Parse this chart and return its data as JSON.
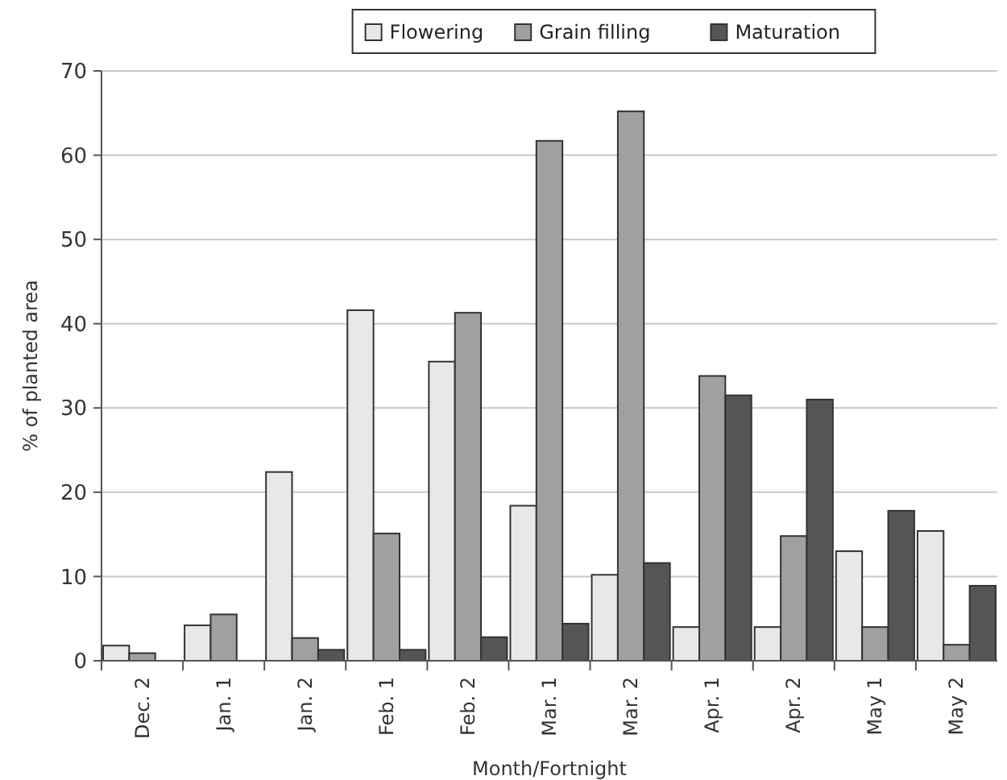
{
  "chart_data": {
    "type": "bar",
    "xlabel": "Month/Fortnight",
    "ylabel": "% of planted area",
    "categories": [
      "Dec. 2",
      "Jan. 1",
      "Jan. 2",
      "Feb. 1",
      "Feb. 2",
      "Mar. 1",
      "Mar. 2",
      "Apr. 1",
      "Apr. 2",
      "May 1",
      "May 2"
    ],
    "series": [
      {
        "name": "Flowering",
        "color": "#e8e8e8",
        "values": [
          1.8,
          4.2,
          22.4,
          41.6,
          35.5,
          18.4,
          10.2,
          4.0,
          4.0,
          13.0,
          15.4
        ]
      },
      {
        "name": "Grain filling",
        "color": "#a0a0a0",
        "values": [
          0.9,
          5.5,
          2.7,
          15.1,
          41.3,
          61.7,
          65.2,
          33.8,
          14.8,
          4.0,
          1.9
        ]
      },
      {
        "name": "Maturation",
        "color": "#555555",
        "values": [
          0,
          0,
          1.3,
          1.3,
          2.8,
          4.4,
          11.6,
          31.5,
          31.0,
          17.8,
          8.9
        ]
      }
    ],
    "ylim": [
      0,
      70
    ],
    "yticks": [
      0,
      10,
      20,
      30,
      40,
      50,
      60,
      70
    ],
    "grid": "y",
    "legend": "top"
  }
}
